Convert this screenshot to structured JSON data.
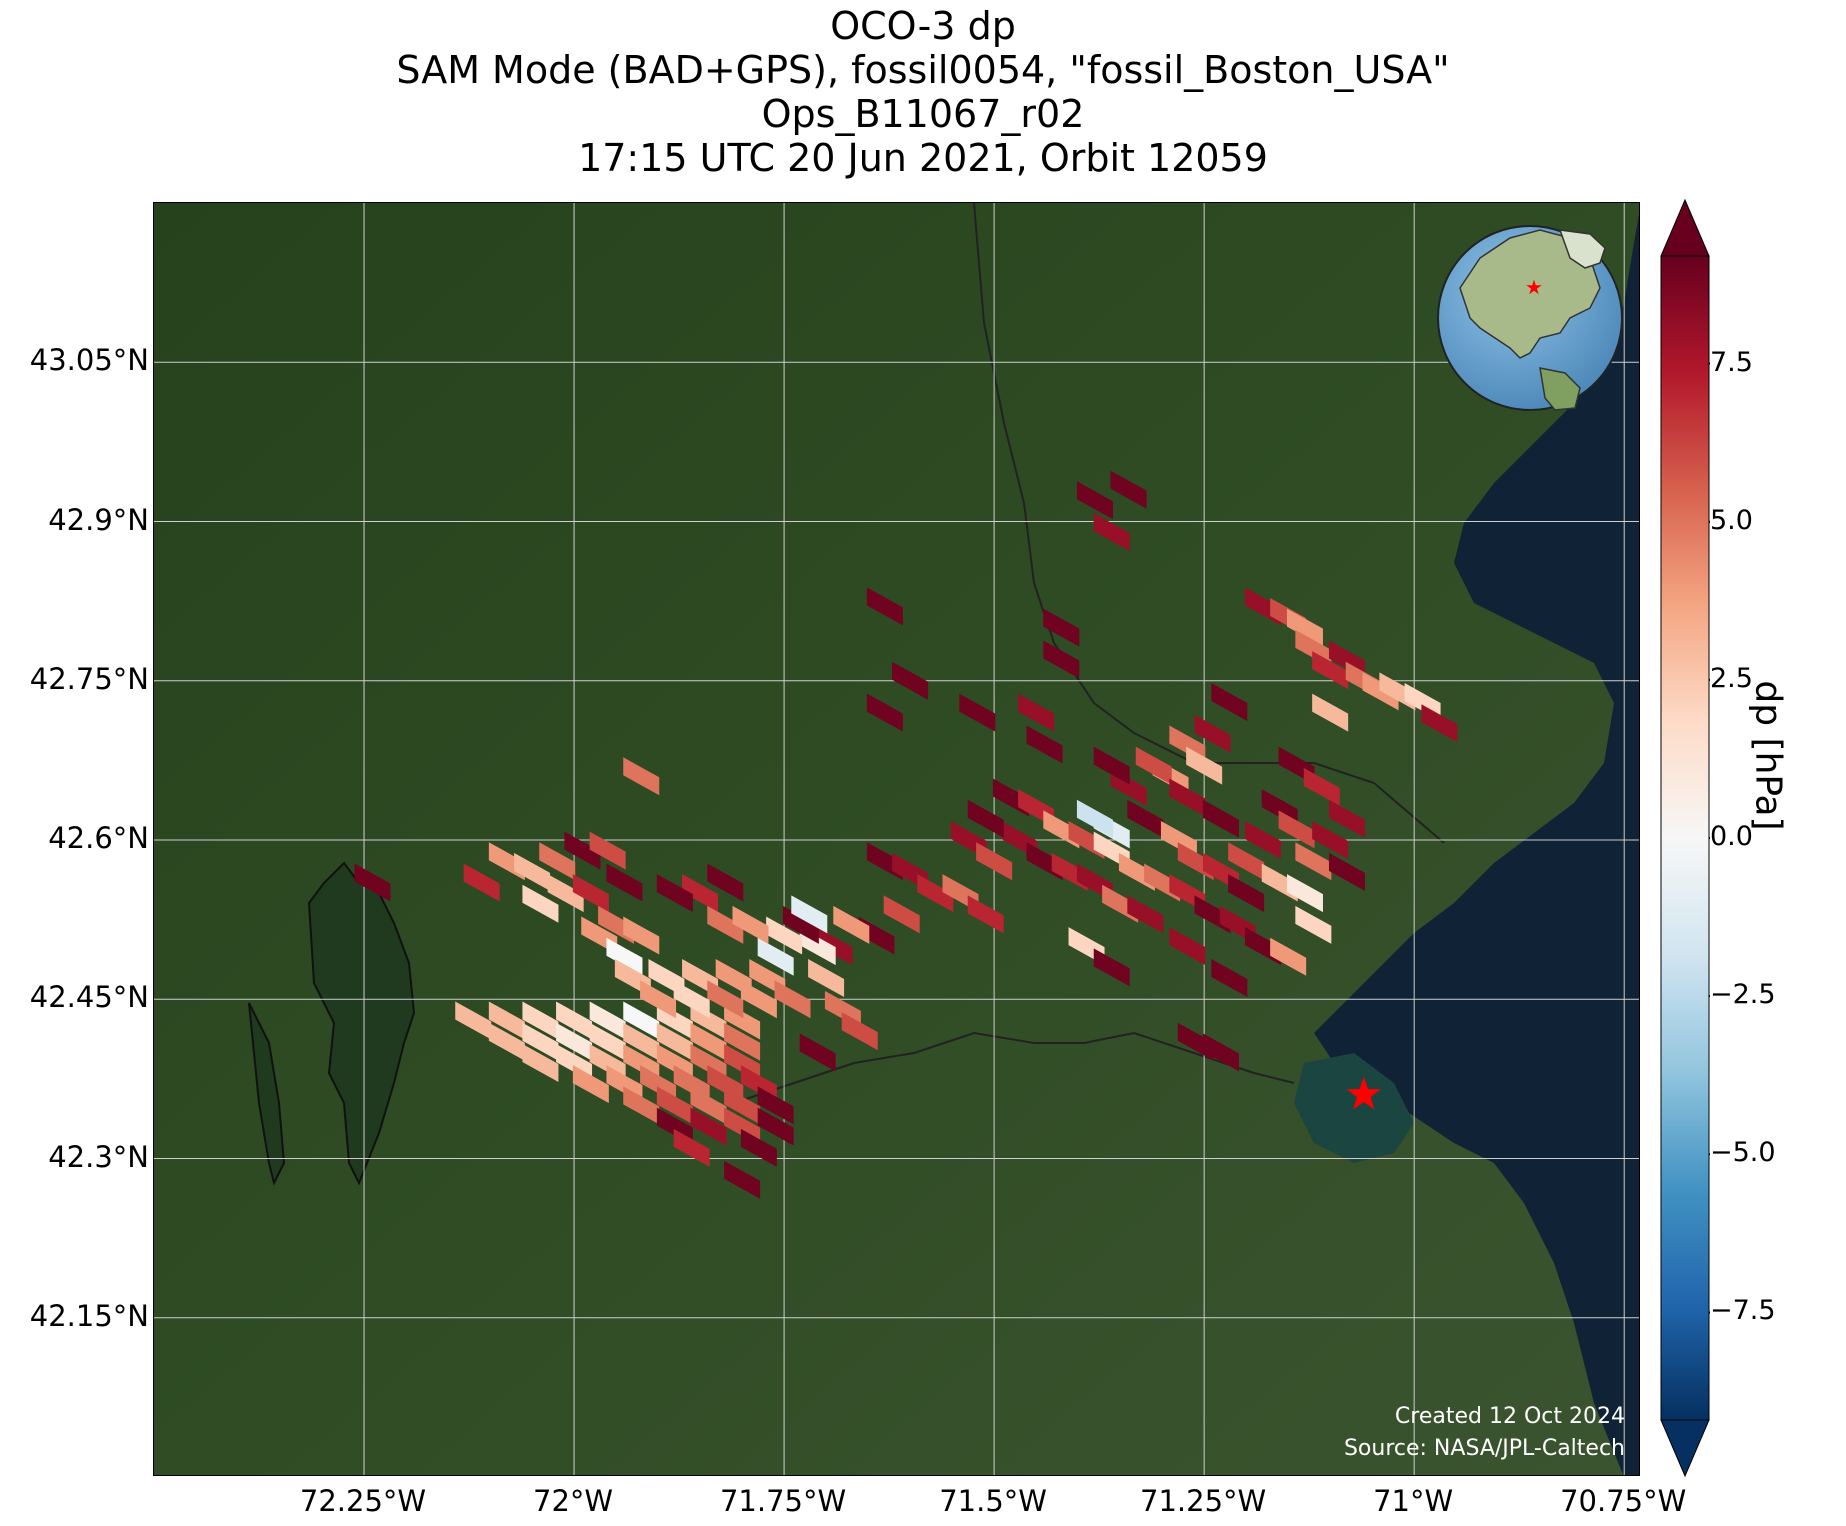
{
  "title": {
    "line1": "OCO-3 dp",
    "line2": "SAM Mode (BAD+GPS), fossil0054, \"fossil_Boston_USA\"",
    "line3": "Ops_B11067_r02",
    "line4": "17:15 UTC 20 Jun 2021, Orbit 12059"
  },
  "map": {
    "lon_range": [
      -72.5,
      -70.73
    ],
    "lat_range": [
      42.0,
      43.2
    ],
    "lat_ticks": [
      "43.05°N",
      "42.9°N",
      "42.75°N",
      "42.6°N",
      "42.45°N",
      "42.3°N",
      "42.15°N"
    ],
    "lat_tick_values": [
      43.05,
      42.9,
      42.75,
      42.6,
      42.45,
      42.3,
      42.15
    ],
    "lon_ticks": [
      "72.25°W",
      "72°W",
      "71.75°W",
      "71.5°W",
      "71.25°W",
      "71°W",
      "70.75°W"
    ],
    "lon_tick_values": [
      -72.25,
      -72.0,
      -71.75,
      -71.5,
      -71.25,
      -71.0,
      -70.75
    ],
    "gridlines": true,
    "target_marker": {
      "name": "fossil_Boston_USA",
      "lon": -71.06,
      "lat": 42.36,
      "color": "#ff0000"
    },
    "land_color": "#2d4a22",
    "ocean_color": "#0f2236",
    "credit_line1": "Created 12 Oct 2024",
    "credit_line2": "Source: NASA/JPL-Caltech"
  },
  "colorbar": {
    "label": "dp [hPa]",
    "min": -9.2,
    "max": 9.2,
    "ticks": [
      "7.5",
      "5.0",
      "2.5",
      "0.0",
      "−2.5",
      "−5.0",
      "−7.5"
    ],
    "tick_values": [
      7.5,
      5.0,
      2.5,
      0.0,
      -2.5,
      -5.0,
      -7.5
    ],
    "colormap": "RdBu_r",
    "extend": "both"
  },
  "chart_data": {
    "type": "map",
    "variable": "dp",
    "units": "hPa",
    "soundings": [
      {
        "lon": -71.38,
        "lat": 42.92,
        "dp": 9
      },
      {
        "lon": -71.36,
        "lat": 42.89,
        "dp": 8
      },
      {
        "lon": -71.34,
        "lat": 42.93,
        "dp": 9
      },
      {
        "lon": -71.63,
        "lat": 42.82,
        "dp": 9
      },
      {
        "lon": -71.42,
        "lat": 42.8,
        "dp": 9
      },
      {
        "lon": -71.42,
        "lat": 42.77,
        "dp": 9
      },
      {
        "lon": -71.6,
        "lat": 42.75,
        "dp": 9
      },
      {
        "lon": -71.63,
        "lat": 42.72,
        "dp": 9
      },
      {
        "lon": -71.52,
        "lat": 42.72,
        "dp": 9
      },
      {
        "lon": -71.45,
        "lat": 42.72,
        "dp": 8
      },
      {
        "lon": -71.44,
        "lat": 42.69,
        "dp": 9
      },
      {
        "lon": -71.18,
        "lat": 42.82,
        "dp": 8
      },
      {
        "lon": -71.15,
        "lat": 42.81,
        "dp": 6
      },
      {
        "lon": -71.13,
        "lat": 42.8,
        "dp": 4
      },
      {
        "lon": -71.12,
        "lat": 42.78,
        "dp": 5
      },
      {
        "lon": -71.1,
        "lat": 42.76,
        "dp": 7
      },
      {
        "lon": -71.08,
        "lat": 42.77,
        "dp": 8
      },
      {
        "lon": -71.06,
        "lat": 42.75,
        "dp": 5
      },
      {
        "lon": -71.04,
        "lat": 42.74,
        "dp": 4
      },
      {
        "lon": -71.02,
        "lat": 42.74,
        "dp": 3
      },
      {
        "lon": -70.99,
        "lat": 42.73,
        "dp": 2
      },
      {
        "lon": -70.97,
        "lat": 42.71,
        "dp": 8
      },
      {
        "lon": -71.1,
        "lat": 42.72,
        "dp": 3
      },
      {
        "lon": -71.22,
        "lat": 42.73,
        "dp": 9
      },
      {
        "lon": -71.24,
        "lat": 42.7,
        "dp": 8
      },
      {
        "lon": -71.27,
        "lat": 42.69,
        "dp": 5
      },
      {
        "lon": -71.25,
        "lat": 42.67,
        "dp": 3
      },
      {
        "lon": -71.29,
        "lat": 42.66,
        "dp": 4
      },
      {
        "lon": -71.31,
        "lat": 42.67,
        "dp": 6
      },
      {
        "lon": -71.34,
        "lat": 42.65,
        "dp": 8
      },
      {
        "lon": -71.36,
        "lat": 42.67,
        "dp": 9
      },
      {
        "lon": -71.27,
        "lat": 42.64,
        "dp": 8
      },
      {
        "lon": -71.23,
        "lat": 42.62,
        "dp": 9
      },
      {
        "lon": -71.32,
        "lat": 42.62,
        "dp": 9
      },
      {
        "lon": -71.14,
        "lat": 42.67,
        "dp": 9
      },
      {
        "lon": -71.11,
        "lat": 42.65,
        "dp": 7
      },
      {
        "lon": -71.16,
        "lat": 42.63,
        "dp": 9
      },
      {
        "lon": -71.14,
        "lat": 42.61,
        "dp": 6
      },
      {
        "lon": -71.1,
        "lat": 42.6,
        "dp": 8
      },
      {
        "lon": -71.12,
        "lat": 42.58,
        "dp": 5
      },
      {
        "lon": -71.18,
        "lat": 42.6,
        "dp": 8
      },
      {
        "lon": -71.2,
        "lat": 42.58,
        "dp": 6
      },
      {
        "lon": -71.16,
        "lat": 42.56,
        "dp": 3
      },
      {
        "lon": -71.13,
        "lat": 42.55,
        "dp": 1
      },
      {
        "lon": -71.12,
        "lat": 42.52,
        "dp": 2
      },
      {
        "lon": -71.08,
        "lat": 42.57,
        "dp": 9
      },
      {
        "lon": -71.08,
        "lat": 42.62,
        "dp": 8
      },
      {
        "lon": -71.48,
        "lat": 42.64,
        "dp": 9
      },
      {
        "lon": -71.45,
        "lat": 42.63,
        "dp": 7
      },
      {
        "lon": -71.42,
        "lat": 42.61,
        "dp": 4
      },
      {
        "lon": -71.39,
        "lat": 42.6,
        "dp": 6
      },
      {
        "lon": -71.36,
        "lat": 42.59,
        "dp": 2
      },
      {
        "lon": -71.33,
        "lat": 42.57,
        "dp": 4
      },
      {
        "lon": -71.3,
        "lat": 42.56,
        "dp": 5
      },
      {
        "lon": -71.27,
        "lat": 42.55,
        "dp": 7
      },
      {
        "lon": -71.24,
        "lat": 42.53,
        "dp": 9
      },
      {
        "lon": -71.21,
        "lat": 42.52,
        "dp": 8
      },
      {
        "lon": -71.18,
        "lat": 42.5,
        "dp": 9
      },
      {
        "lon": -71.15,
        "lat": 42.49,
        "dp": 4
      },
      {
        "lon": -71.47,
        "lat": 42.6,
        "dp": 8
      },
      {
        "lon": -71.44,
        "lat": 42.58,
        "dp": 9
      },
      {
        "lon": -71.41,
        "lat": 42.57,
        "dp": 7
      },
      {
        "lon": -71.38,
        "lat": 42.56,
        "dp": 8
      },
      {
        "lon": -71.35,
        "lat": 42.54,
        "dp": 5
      },
      {
        "lon": -71.32,
        "lat": 42.53,
        "dp": 8
      },
      {
        "lon": -71.36,
        "lat": 42.61,
        "dp": -1
      },
      {
        "lon": -71.38,
        "lat": 42.62,
        "dp": -2
      },
      {
        "lon": -71.51,
        "lat": 42.62,
        "dp": 9
      },
      {
        "lon": -71.53,
        "lat": 42.6,
        "dp": 8
      },
      {
        "lon": -71.5,
        "lat": 42.58,
        "dp": 6
      },
      {
        "lon": -71.28,
        "lat": 42.6,
        "dp": 4
      },
      {
        "lon": -71.26,
        "lat": 42.58,
        "dp": 6
      },
      {
        "lon": -71.23,
        "lat": 42.57,
        "dp": 7
      },
      {
        "lon": -71.2,
        "lat": 42.55,
        "dp": 9
      },
      {
        "lon": -71.27,
        "lat": 42.5,
        "dp": 8
      },
      {
        "lon": -71.22,
        "lat": 42.47,
        "dp": 9
      },
      {
        "lon": -71.63,
        "lat": 42.58,
        "dp": 9
      },
      {
        "lon": -71.6,
        "lat": 42.57,
        "dp": 8
      },
      {
        "lon": -71.57,
        "lat": 42.55,
        "dp": 7
      },
      {
        "lon": -71.54,
        "lat": 42.55,
        "dp": 5
      },
      {
        "lon": -71.51,
        "lat": 42.53,
        "dp": 7
      },
      {
        "lon": -71.61,
        "lat": 42.53,
        "dp": 6
      },
      {
        "lon": -71.64,
        "lat": 42.51,
        "dp": 9
      },
      {
        "lon": -71.67,
        "lat": 42.52,
        "dp": 4
      },
      {
        "lon": -71.69,
        "lat": 42.5,
        "dp": 8
      },
      {
        "lon": -71.71,
        "lat": 42.5,
        "dp": 1
      },
      {
        "lon": -71.73,
        "lat": 42.52,
        "dp": 9
      },
      {
        "lon": -71.75,
        "lat": 42.51,
        "dp": 2
      },
      {
        "lon": -71.72,
        "lat": 42.53,
        "dp": -1
      },
      {
        "lon": -71.76,
        "lat": 42.49,
        "dp": -1
      },
      {
        "lon": -71.7,
        "lat": 42.47,
        "dp": 3
      },
      {
        "lon": -71.39,
        "lat": 42.5,
        "dp": 2
      },
      {
        "lon": -71.36,
        "lat": 42.48,
        "dp": 9
      },
      {
        "lon": -72.24,
        "lat": 42.56,
        "dp": 9
      },
      {
        "lon": -72.11,
        "lat": 42.56,
        "dp": 7
      },
      {
        "lon": -72.08,
        "lat": 42.58,
        "dp": 4
      },
      {
        "lon": -72.05,
        "lat": 42.57,
        "dp": 3
      },
      {
        "lon": -72.02,
        "lat": 42.58,
        "dp": 5
      },
      {
        "lon": -71.99,
        "lat": 42.59,
        "dp": 9
      },
      {
        "lon": -71.96,
        "lat": 42.59,
        "dp": 6
      },
      {
        "lon": -71.94,
        "lat": 42.56,
        "dp": 9
      },
      {
        "lon": -72.04,
        "lat": 42.54,
        "dp": 2
      },
      {
        "lon": -72.01,
        "lat": 42.55,
        "dp": 3
      },
      {
        "lon": -71.98,
        "lat": 42.55,
        "dp": 7
      },
      {
        "lon": -71.95,
        "lat": 42.52,
        "dp": 5
      },
      {
        "lon": -71.92,
        "lat": 42.51,
        "dp": 4
      },
      {
        "lon": -71.97,
        "lat": 42.51,
        "dp": 4
      },
      {
        "lon": -71.94,
        "lat": 42.49,
        "dp": 0
      },
      {
        "lon": -71.82,
        "lat": 42.56,
        "dp": 9
      },
      {
        "lon": -71.85,
        "lat": 42.55,
        "dp": 7
      },
      {
        "lon": -71.88,
        "lat": 42.55,
        "dp": 9
      },
      {
        "lon": -71.82,
        "lat": 42.52,
        "dp": 5
      },
      {
        "lon": -71.79,
        "lat": 42.52,
        "dp": 4
      },
      {
        "lon": -71.92,
        "lat": 42.66,
        "dp": 5
      },
      {
        "lon": -72.12,
        "lat": 42.43,
        "dp": 3
      },
      {
        "lon": -72.08,
        "lat": 42.43,
        "dp": 3
      },
      {
        "lon": -72.04,
        "lat": 42.43,
        "dp": 2
      },
      {
        "lon": -72.0,
        "lat": 42.43,
        "dp": 2
      },
      {
        "lon": -71.96,
        "lat": 42.43,
        "dp": 1
      },
      {
        "lon": -71.92,
        "lat": 42.43,
        "dp": 0
      },
      {
        "lon": -71.88,
        "lat": 42.43,
        "dp": 2
      },
      {
        "lon": -71.84,
        "lat": 42.43,
        "dp": 3
      },
      {
        "lon": -71.8,
        "lat": 42.43,
        "dp": 4
      },
      {
        "lon": -72.08,
        "lat": 42.41,
        "dp": 3
      },
      {
        "lon": -72.04,
        "lat": 42.41,
        "dp": 2
      },
      {
        "lon": -72.0,
        "lat": 42.41,
        "dp": 1
      },
      {
        "lon": -71.96,
        "lat": 42.41,
        "dp": 2
      },
      {
        "lon": -71.92,
        "lat": 42.41,
        "dp": 3
      },
      {
        "lon": -71.88,
        "lat": 42.41,
        "dp": 3
      },
      {
        "lon": -71.84,
        "lat": 42.41,
        "dp": 4
      },
      {
        "lon": -71.8,
        "lat": 42.41,
        "dp": 5
      },
      {
        "lon": -72.04,
        "lat": 42.39,
        "dp": 3
      },
      {
        "lon": -72.0,
        "lat": 42.39,
        "dp": 2
      },
      {
        "lon": -71.96,
        "lat": 42.39,
        "dp": 3
      },
      {
        "lon": -71.92,
        "lat": 42.39,
        "dp": 4
      },
      {
        "lon": -71.88,
        "lat": 42.39,
        "dp": 4
      },
      {
        "lon": -71.84,
        "lat": 42.39,
        "dp": 5
      },
      {
        "lon": -71.8,
        "lat": 42.39,
        "dp": 6
      },
      {
        "lon": -71.98,
        "lat": 42.37,
        "dp": 4
      },
      {
        "lon": -71.94,
        "lat": 42.37,
        "dp": 4
      },
      {
        "lon": -71.9,
        "lat": 42.37,
        "dp": 5
      },
      {
        "lon": -71.86,
        "lat": 42.37,
        "dp": 5
      },
      {
        "lon": -71.82,
        "lat": 42.37,
        "dp": 6
      },
      {
        "lon": -71.78,
        "lat": 42.37,
        "dp": 7
      },
      {
        "lon": -71.92,
        "lat": 42.35,
        "dp": 5
      },
      {
        "lon": -71.88,
        "lat": 42.35,
        "dp": 6
      },
      {
        "lon": -71.84,
        "lat": 42.35,
        "dp": 5
      },
      {
        "lon": -71.8,
        "lat": 42.35,
        "dp": 6
      },
      {
        "lon": -71.76,
        "lat": 42.35,
        "dp": 9
      },
      {
        "lon": -71.88,
        "lat": 42.33,
        "dp": 9
      },
      {
        "lon": -71.84,
        "lat": 42.33,
        "dp": 8
      },
      {
        "lon": -71.8,
        "lat": 42.33,
        "dp": 6
      },
      {
        "lon": -71.76,
        "lat": 42.33,
        "dp": 9
      },
      {
        "lon": -71.86,
        "lat": 42.31,
        "dp": 7
      },
      {
        "lon": -71.78,
        "lat": 42.31,
        "dp": 9
      },
      {
        "lon": -71.8,
        "lat": 42.28,
        "dp": 9
      },
      {
        "lon": -71.93,
        "lat": 42.47,
        "dp": 3
      },
      {
        "lon": -71.89,
        "lat": 42.47,
        "dp": 2
      },
      {
        "lon": -71.85,
        "lat": 42.47,
        "dp": 3
      },
      {
        "lon": -71.81,
        "lat": 42.47,
        "dp": 4
      },
      {
        "lon": -71.77,
        "lat": 42.47,
        "dp": 4
      },
      {
        "lon": -71.9,
        "lat": 42.45,
        "dp": 4
      },
      {
        "lon": -71.86,
        "lat": 42.45,
        "dp": 2
      },
      {
        "lon": -71.82,
        "lat": 42.45,
        "dp": 5
      },
      {
        "lon": -71.78,
        "lat": 42.45,
        "dp": 4
      },
      {
        "lon": -71.74,
        "lat": 42.45,
        "dp": 5
      },
      {
        "lon": -71.68,
        "lat": 42.44,
        "dp": 5
      },
      {
        "lon": -71.66,
        "lat": 42.42,
        "dp": 6
      },
      {
        "lon": -71.71,
        "lat": 42.4,
        "dp": 9
      },
      {
        "lon": -71.26,
        "lat": 42.41,
        "dp": 9
      },
      {
        "lon": -71.23,
        "lat": 42.4,
        "dp": 9
      }
    ]
  }
}
